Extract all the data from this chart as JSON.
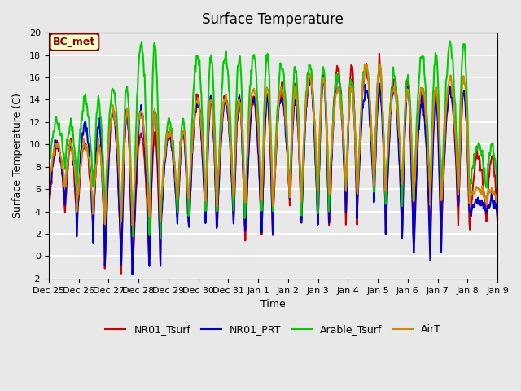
{
  "title": "Surface Temperature",
  "ylabel": "Surface Temperature (C)",
  "xlabel": "Time",
  "ylim": [
    -2,
    20
  ],
  "yticks": [
    -2,
    0,
    2,
    4,
    6,
    8,
    10,
    12,
    14,
    16,
    18,
    20
  ],
  "background_color": "#e8e8e8",
  "plot_bg_color": "#e8e8e8",
  "grid_color": "white",
  "annotation_text": "BC_met",
  "annotation_color": "#8b0000",
  "annotation_bg": "#ffffcc",
  "series_colors": {
    "NR01_Tsurf": "#cc0000",
    "NR01_PRT": "#0000cc",
    "Arable_Tsurf": "#00cc00",
    "AirT": "#cc8800"
  },
  "series_lw": 1.5,
  "tick_labels": [
    "Dec 25",
    "Dec 26",
    "Dec 27",
    "Dec 28",
    "Dec 29",
    "Dec 30",
    "Dec 31",
    "Jan 1",
    "Jan 2",
    "Jan 3",
    "Jan 4",
    "Jan 5",
    "Jan 6",
    "Jan 7",
    "Jan 8",
    "Jan 9"
  ],
  "n_points_per_day": 48
}
